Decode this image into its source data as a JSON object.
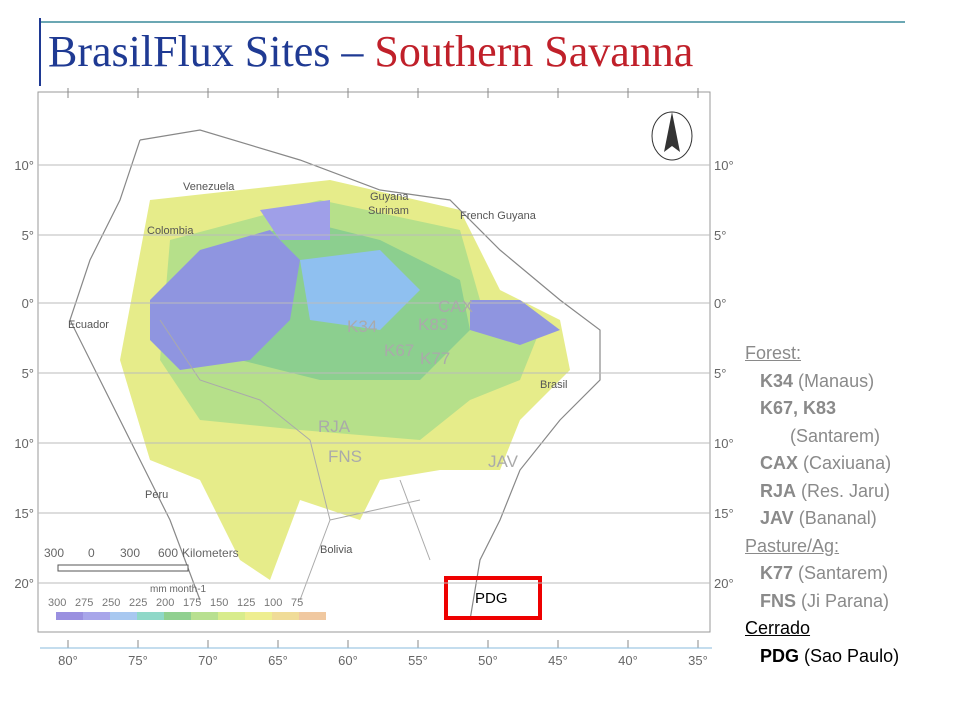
{
  "title": {
    "main": "BrasilFlux Sites –",
    "highlight": "Southern Savanna"
  },
  "map": {
    "lat_labels": [
      "10°",
      "5°",
      "0°",
      "5°",
      "10°",
      "15°",
      "20°"
    ],
    "lon_labels": [
      "80°",
      "75°",
      "70°",
      "65°",
      "60°",
      "55°",
      "50°",
      "45°",
      "40°",
      "35°"
    ],
    "countries": [
      "Venezuela",
      "Guyana",
      "Surinam",
      "French Guyana",
      "Colombia",
      "Ecuador",
      "Peru",
      "Bolivia",
      "Brasil"
    ],
    "sites": [
      "K34",
      "K67",
      "K83",
      "K77",
      "CAX",
      "RJA",
      "FNS",
      "JAV",
      "PDG"
    ],
    "scale_bar": {
      "numbers": [
        "300",
        "0",
        "300",
        "600"
      ],
      "unit": "Kilometers"
    },
    "color_legend": {
      "unit": "mm month-1",
      "values": [
        "300",
        "275",
        "250",
        "225",
        "200",
        "175",
        "150",
        "125",
        "100",
        "75"
      ]
    }
  },
  "site_list": [
    {
      "heading": "Forest:",
      "items": [
        {
          "code": "K34",
          "place": "(Manaus)"
        },
        {
          "code": "K67, K83",
          "place": "(Santarem)"
        },
        {
          "code": "CAX",
          "place": "(Caxiuana)"
        },
        {
          "code": "RJA",
          "place": "(Res. Jaru)"
        },
        {
          "code": "JAV",
          "place": "(Bananal)"
        }
      ]
    },
    {
      "heading": "Pasture/Ag:",
      "items": [
        {
          "code": "K77",
          "place": "(Santarem)"
        },
        {
          "code": "FNS",
          "place": "(Ji Parana)"
        }
      ]
    },
    {
      "heading": "Cerrado",
      "items": [
        {
          "code": "PDG",
          "place": "(Sao Paulo)"
        }
      ]
    }
  ]
}
